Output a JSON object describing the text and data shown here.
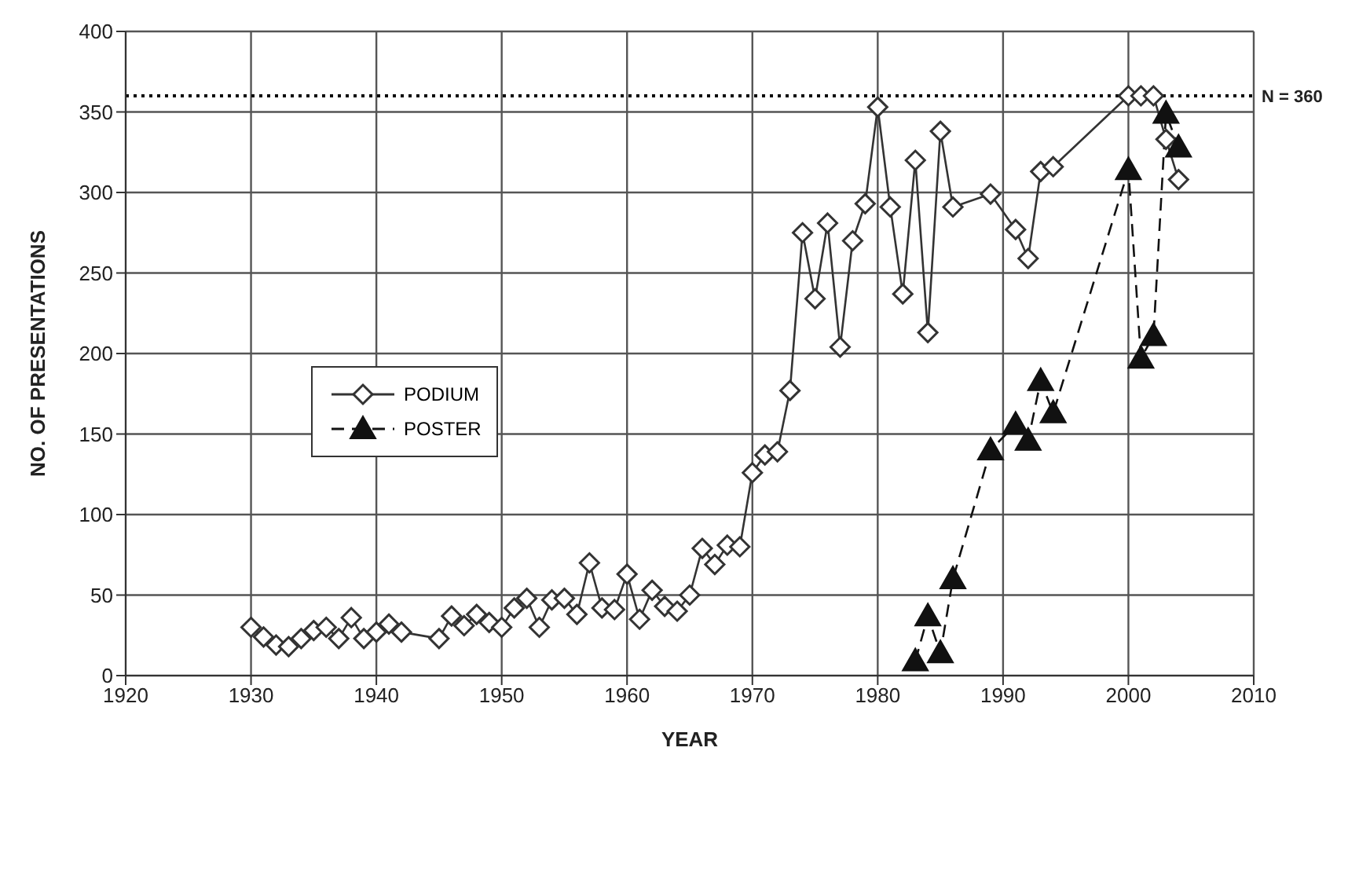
{
  "chart_data": {
    "type": "line",
    "xlabel": "YEAR",
    "ylabel": "NO. OF PRESENTATIONS",
    "xlim": [
      1920,
      2010
    ],
    "xticks": [
      1920,
      1930,
      1940,
      1950,
      1960,
      1970,
      1980,
      1990,
      2000,
      2010
    ],
    "ylim": [
      0,
      400
    ],
    "yticks": [
      0,
      50,
      100,
      150,
      200,
      250,
      300,
      350,
      400
    ],
    "grid": true,
    "legend": "left",
    "ref_lines": [
      {
        "axis": "y",
        "value": 360,
        "label": "N = 360",
        "color": "#000000",
        "line_style": "dotted"
      }
    ],
    "series": [
      {
        "name": "PODIUM",
        "color": "#333333",
        "marker": "diamond",
        "line_style": "solid",
        "x": [
          1930,
          1931,
          1932,
          1933,
          1934,
          1935,
          1936,
          1937,
          1938,
          1939,
          1940,
          1941,
          1942,
          1945,
          1946,
          1947,
          1948,
          1949,
          1950,
          1951,
          1952,
          1953,
          1954,
          1955,
          1956,
          1957,
          1958,
          1959,
          1960,
          1961,
          1962,
          1963,
          1964,
          1965,
          1966,
          1967,
          1968,
          1969,
          1970,
          1971,
          1972,
          1973,
          1974,
          1975,
          1976,
          1977,
          1978,
          1979,
          1980,
          1981,
          1982,
          1983,
          1984,
          1985,
          1986,
          1989,
          1991,
          1992,
          1993,
          1994,
          2000,
          2001,
          2002,
          2003,
          2004
        ],
        "values": [
          30,
          24,
          19,
          18,
          23,
          28,
          30,
          23,
          36,
          23,
          27,
          32,
          27,
          23,
          37,
          31,
          38,
          33,
          30,
          42,
          48,
          30,
          47,
          48,
          38,
          70,
          42,
          41,
          63,
          35,
          53,
          43,
          40,
          50,
          79,
          69,
          81,
          80,
          126,
          137,
          139,
          177,
          275,
          234,
          281,
          204,
          270,
          293,
          353,
          291,
          237,
          320,
          213,
          338,
          291,
          299,
          277,
          259,
          313,
          316,
          360,
          360,
          360,
          333,
          308
        ]
      },
      {
        "name": "POSTER",
        "color": "#111111",
        "marker": "triangle",
        "line_style": "dashed",
        "x": [
          1983,
          1984,
          1985,
          1986,
          1989,
          1991,
          1992,
          1993,
          1994,
          2000,
          2001,
          2002,
          2003,
          2004
        ],
        "values": [
          9,
          37,
          14,
          60,
          140,
          156,
          146,
          183,
          163,
          314,
          197,
          211,
          349,
          328
        ]
      }
    ]
  }
}
